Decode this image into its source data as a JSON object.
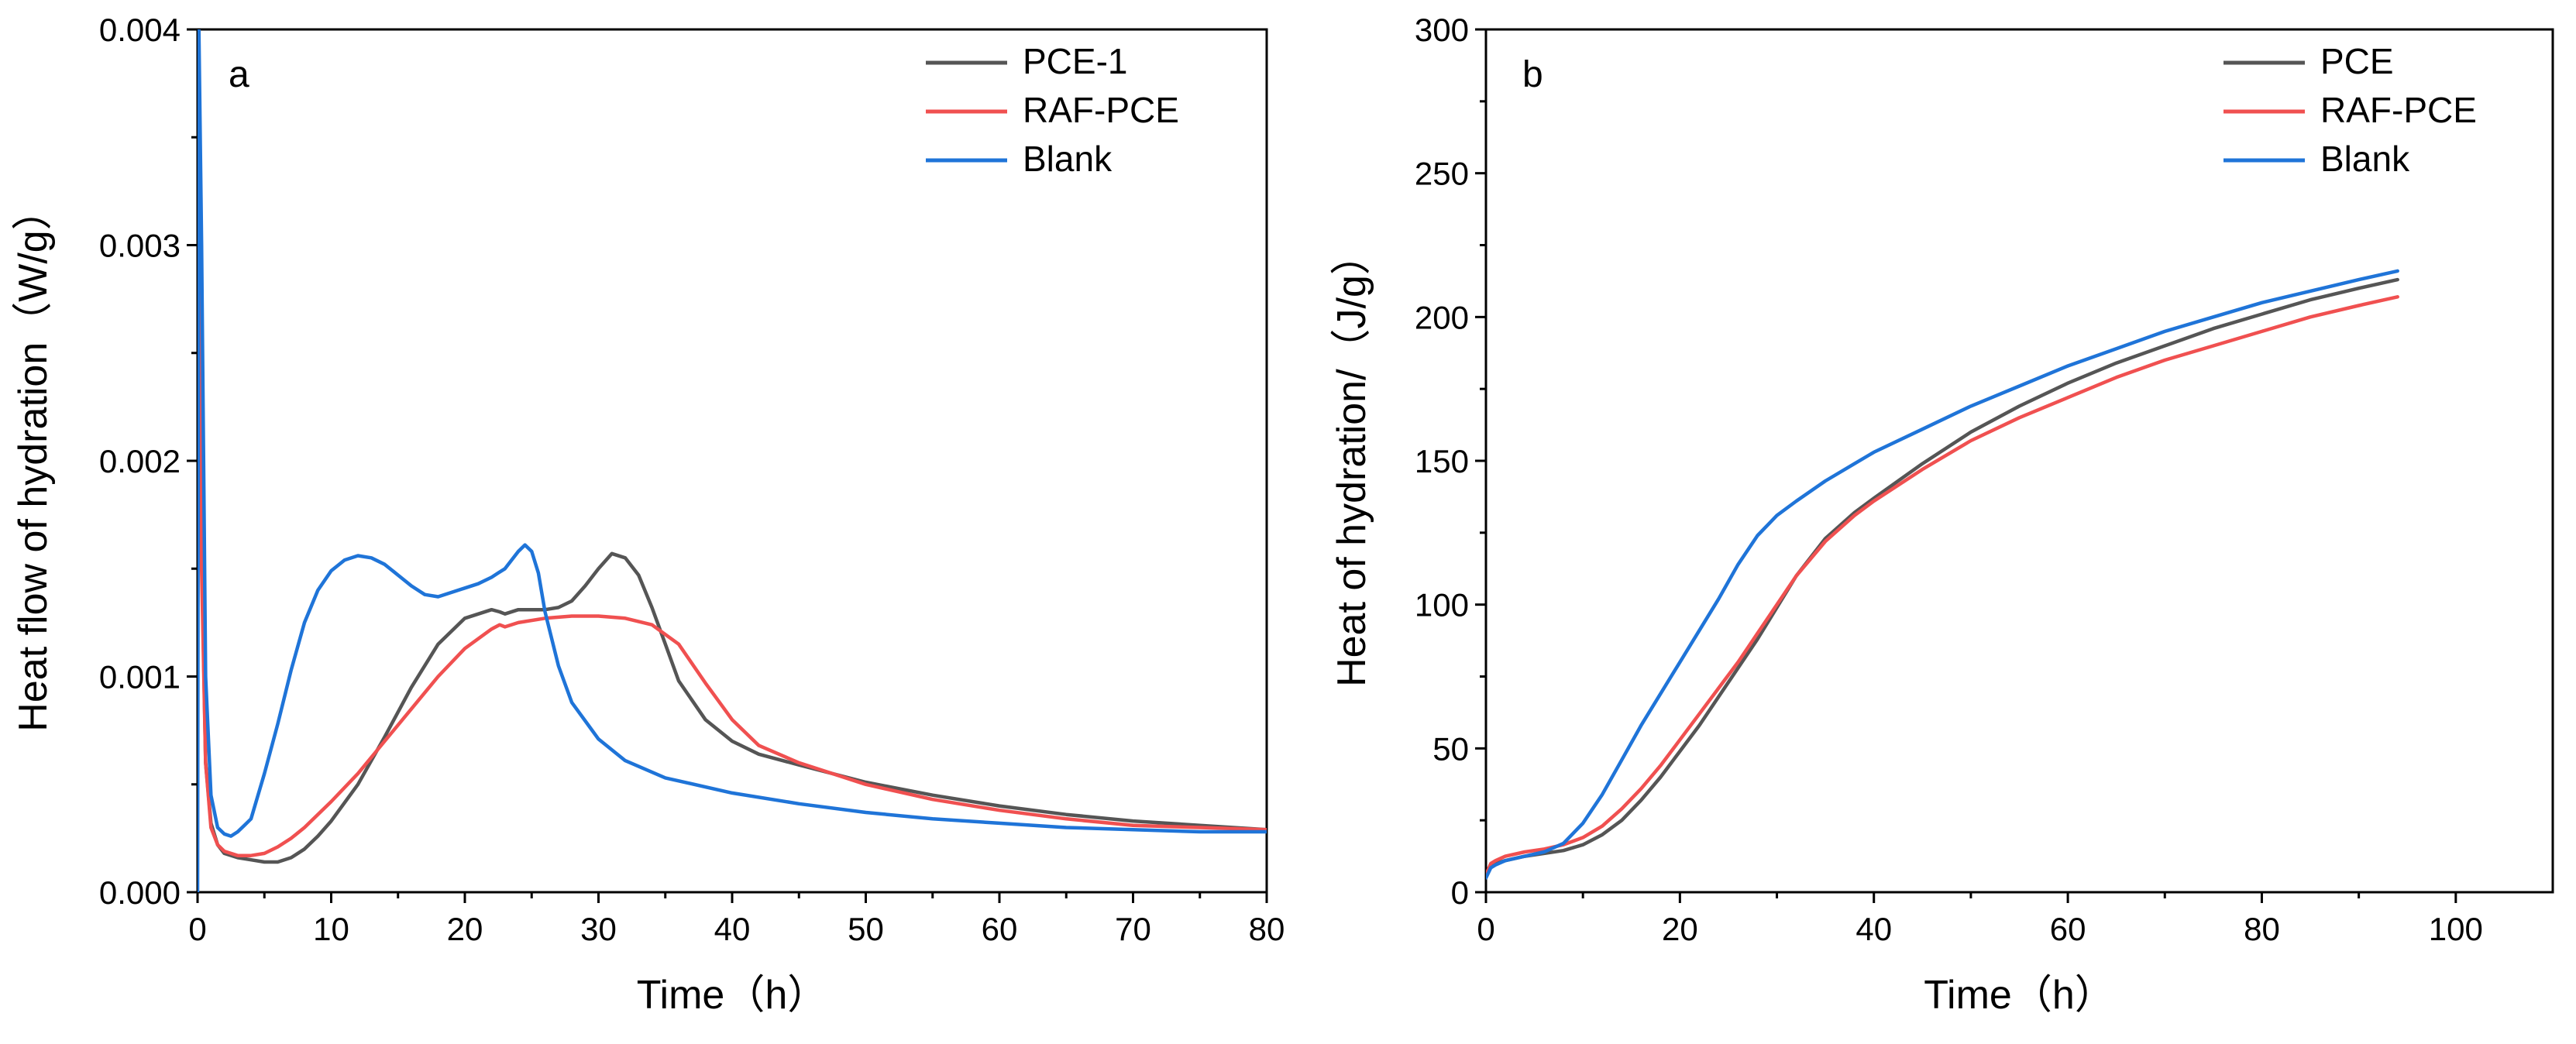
{
  "chart_data": [
    {
      "panel": "a",
      "type": "line",
      "xlabel": "Time（h）",
      "ylabel": "Heat flow of hydration（W/g）",
      "xlim": [
        0,
        80
      ],
      "ylim": [
        0,
        0.004
      ],
      "xticks": [
        "0",
        "10",
        "20",
        "30",
        "40",
        "50",
        "60",
        "70",
        "80"
      ],
      "yticks": [
        "0.000",
        "0.001",
        "0.002",
        "0.003",
        "0.004"
      ],
      "legend_position": "top-right",
      "series": [
        {
          "name": "PCE-1",
          "color": "#555555",
          "x": [
            0,
            0.3,
            0.6,
            1,
            1.5,
            2,
            3,
            4,
            5,
            6,
            7,
            8,
            9,
            10,
            12,
            14,
            16,
            18,
            20,
            22,
            22.6,
            23,
            24,
            26,
            27,
            28,
            29,
            30,
            31,
            32,
            33,
            34,
            35,
            36,
            38,
            40,
            42,
            45,
            50,
            55,
            60,
            65,
            70,
            75,
            80
          ],
          "y": [
            0.004,
            0.0016,
            0.0006,
            0.00032,
            0.00022,
            0.00018,
            0.00016,
            0.00015,
            0.00014,
            0.00014,
            0.00016,
            0.0002,
            0.00026,
            0.00033,
            0.0005,
            0.00072,
            0.00095,
            0.00115,
            0.00127,
            0.00131,
            0.0013,
            0.00129,
            0.00131,
            0.00131,
            0.00132,
            0.00135,
            0.00142,
            0.0015,
            0.00157,
            0.00155,
            0.00147,
            0.00132,
            0.00115,
            0.00098,
            0.0008,
            0.0007,
            0.00064,
            0.00059,
            0.00051,
            0.00045,
            0.0004,
            0.00036,
            0.00033,
            0.00031,
            0.00029
          ]
        },
        {
          "name": "RAF-PCE",
          "color": "#f05050",
          "x": [
            0,
            0.3,
            0.6,
            1,
            1.5,
            2,
            3,
            4,
            5,
            6,
            7,
            8,
            10,
            12,
            14,
            16,
            18,
            20,
            22,
            22.6,
            23,
            24,
            26,
            28,
            30,
            32,
            34,
            36,
            38,
            40,
            42,
            45,
            50,
            55,
            60,
            65,
            70,
            75,
            80
          ],
          "y": [
            0.004,
            0.0015,
            0.0006,
            0.0003,
            0.00022,
            0.00019,
            0.00017,
            0.00017,
            0.00018,
            0.00021,
            0.00025,
            0.0003,
            0.00042,
            0.00055,
            0.0007,
            0.00085,
            0.001,
            0.00113,
            0.00122,
            0.00124,
            0.00123,
            0.00125,
            0.00127,
            0.00128,
            0.00128,
            0.00127,
            0.00124,
            0.00115,
            0.00097,
            0.0008,
            0.00068,
            0.0006,
            0.0005,
            0.00043,
            0.00038,
            0.00034,
            0.00031,
            0.0003,
            0.00029
          ]
        },
        {
          "name": "Blank",
          "color": "#1f74d8",
          "x": [
            0,
            0.1,
            0.3,
            0.6,
            1,
            1.5,
            2,
            2.5,
            3,
            3.5,
            4,
            5,
            6,
            7,
            8,
            9,
            10,
            11,
            12,
            13,
            14,
            15,
            16,
            17,
            18,
            19,
            20,
            21,
            22,
            22.5,
            23,
            24,
            24.5,
            25,
            25.5,
            26,
            27,
            28,
            30,
            32,
            35,
            40,
            45,
            50,
            55,
            60,
            65,
            70,
            75,
            80
          ],
          "y": [
            0.0,
            0.004,
            0.003,
            0.001,
            0.00045,
            0.0003,
            0.00027,
            0.00026,
            0.00028,
            0.00031,
            0.00034,
            0.00055,
            0.00078,
            0.00103,
            0.00125,
            0.0014,
            0.00149,
            0.00154,
            0.00156,
            0.00155,
            0.00152,
            0.00147,
            0.00142,
            0.00138,
            0.00137,
            0.00139,
            0.00141,
            0.00143,
            0.00146,
            0.00148,
            0.0015,
            0.00158,
            0.00161,
            0.00158,
            0.00148,
            0.0013,
            0.00105,
            0.00088,
            0.00071,
            0.00061,
            0.00053,
            0.00046,
            0.00041,
            0.00037,
            0.00034,
            0.00032,
            0.0003,
            0.00029,
            0.00028,
            0.00028
          ]
        }
      ]
    },
    {
      "panel": "b",
      "type": "line",
      "xlabel": "Time（h）",
      "ylabel": "Heat of hydration/（J/g）",
      "xlim": [
        0,
        110
      ],
      "ylim": [
        0,
        300
      ],
      "xticks": [
        "0",
        "20",
        "40",
        "60",
        "80",
        "100"
      ],
      "yticks": [
        "0",
        "50",
        "100",
        "150",
        "200",
        "250",
        "300"
      ],
      "legend_position": "top-right",
      "series": [
        {
          "name": "PCE",
          "color": "#555555",
          "x": [
            0,
            0.5,
            1,
            2,
            4,
            6,
            8,
            10,
            12,
            14,
            16,
            18,
            20,
            22,
            24,
            26,
            28,
            30,
            32,
            35,
            38,
            40,
            45,
            50,
            55,
            60,
            65,
            70,
            75,
            80,
            85,
            90,
            94
          ],
          "y": [
            5,
            9,
            10,
            11,
            12.5,
            13.5,
            14.5,
            16.5,
            20,
            25,
            32,
            40,
            49,
            58,
            68,
            78,
            88,
            99,
            110,
            123,
            132,
            137,
            149,
            160,
            169,
            177,
            184,
            190,
            196,
            201,
            206,
            210,
            213
          ]
        },
        {
          "name": "RAF-PCE",
          "color": "#f05050",
          "x": [
            0,
            0.5,
            1,
            2,
            4,
            6,
            8,
            10,
            12,
            14,
            16,
            18,
            20,
            22,
            24,
            26,
            28,
            30,
            32,
            35,
            38,
            40,
            45,
            50,
            55,
            60,
            65,
            70,
            75,
            80,
            85,
            90,
            94
          ],
          "y": [
            6,
            10,
            11,
            12.5,
            14,
            15,
            16.5,
            19,
            23,
            29,
            36,
            44,
            53,
            62,
            71,
            80,
            90,
            100,
            110,
            122,
            131,
            136,
            147,
            157,
            165,
            172,
            179,
            185,
            190,
            195,
            200,
            204,
            207
          ]
        },
        {
          "name": "Blank",
          "color": "#1f74d8",
          "x": [
            0,
            0.5,
            1,
            2,
            4,
            6,
            8,
            10,
            12,
            14,
            16,
            18,
            20,
            22,
            24,
            26,
            28,
            30,
            32,
            35,
            38,
            40,
            45,
            50,
            55,
            60,
            65,
            70,
            75,
            80,
            85,
            90,
            94
          ],
          "y": [
            5,
            8.5,
            9.5,
            11,
            12.5,
            14,
            17,
            24,
            34,
            46,
            58,
            69,
            80,
            91,
            102,
            114,
            124,
            131,
            136,
            143,
            149,
            153,
            161,
            169,
            176,
            183,
            189,
            195,
            200,
            205,
            209,
            213,
            216
          ]
        }
      ]
    }
  ]
}
